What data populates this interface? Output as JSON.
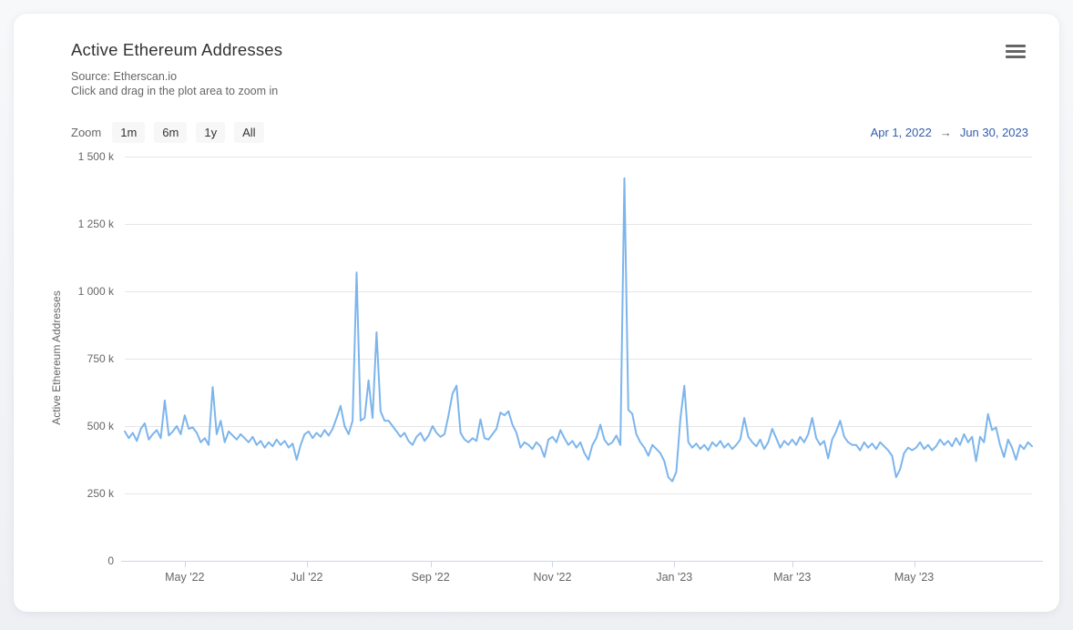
{
  "header": {
    "title": "Active Ethereum Addresses",
    "subtitle1": "Source: Etherscan.io",
    "subtitle2": "Click and drag in the plot area to zoom in"
  },
  "toolbar": {
    "zoom_label": "Zoom",
    "buttons": [
      "1m",
      "6m",
      "1y",
      "All"
    ],
    "range_from": "Apr 1, 2022",
    "range_arrow": "→",
    "range_to": "Jun 30, 2023"
  },
  "icons": {
    "menu": "hamburger-menu-icon"
  },
  "colors": {
    "line": "#7cb5ec",
    "gridline": "#e6e6e6",
    "axis_line": "#ccd6eb",
    "label_text": "#666666",
    "title_text": "#333333",
    "range_text": "#335cad",
    "card_bg": "#ffffff"
  },
  "chart_data": {
    "type": "line",
    "title": "Active Ethereum Addresses",
    "ylabel": "Active Ethereum Addresses",
    "xlabel": "",
    "legend": "none",
    "grid": "horizontal-only",
    "ylim_addresses": [
      0,
      1500000
    ],
    "x_range": {
      "start_date": "2022-04-01",
      "end_date": "2023-06-30",
      "total_days": 454
    },
    "y_axis": {
      "title": "Active Ethereum Addresses",
      "ticks": [
        {
          "value_k": 0,
          "label": "0"
        },
        {
          "value_k": 250,
          "label": "250 k"
        },
        {
          "value_k": 500,
          "label": "500 k"
        },
        {
          "value_k": 750,
          "label": "750 k"
        },
        {
          "value_k": 1000,
          "label": "1 000 k"
        },
        {
          "value_k": 1250,
          "label": "1 250 k"
        },
        {
          "value_k": 1500,
          "label": "1 500 k"
        }
      ]
    },
    "x_axis": {
      "ticks": [
        {
          "day": 30,
          "label": "May '22"
        },
        {
          "day": 91,
          "label": "Jul '22"
        },
        {
          "day": 153,
          "label": "Sep '22"
        },
        {
          "day": 214,
          "label": "Nov '22"
        },
        {
          "day": 275,
          "label": "Jan '23"
        },
        {
          "day": 334,
          "label": "Mar '23"
        },
        {
          "day": 395,
          "label": "May '23"
        }
      ]
    },
    "notable_points": [
      {
        "date": "2022-04-21",
        "value_k": 595
      },
      {
        "date": "2022-05-14",
        "value_k": 645
      },
      {
        "date": "2022-07-26",
        "value_k": 1070
      },
      {
        "date": "2022-08-04",
        "value_k": 848
      },
      {
        "date": "2022-09-14",
        "value_k": 650
      },
      {
        "date": "2022-12-07",
        "value_k": 1420
      },
      {
        "date": "2022-12-29",
        "value_k": 295
      },
      {
        "date": "2023-01-06",
        "value_k": 650
      },
      {
        "date": "2023-04-21",
        "value_k": 310
      },
      {
        "date": "2023-06-08",
        "value_k": 545
      }
    ],
    "series": [
      {
        "name": "Active Ethereum Addresses",
        "color": "#7cb5ec",
        "start_date": "2022-04-01",
        "interval_days": 2,
        "values_unit": "thousands of addresses",
        "values_k": [
          480,
          455,
          475,
          445,
          490,
          510,
          450,
          470,
          485,
          455,
          595,
          465,
          480,
          500,
          470,
          540,
          490,
          495,
          475,
          440,
          455,
          430,
          645,
          470,
          520,
          440,
          480,
          465,
          450,
          470,
          455,
          440,
          460,
          430,
          445,
          420,
          440,
          425,
          450,
          430,
          445,
          420,
          435,
          375,
          430,
          470,
          480,
          455,
          475,
          460,
          485,
          465,
          490,
          530,
          575,
          500,
          470,
          520,
          1070,
          520,
          530,
          670,
          530,
          848,
          555,
          520,
          520,
          500,
          480,
          460,
          475,
          445,
          430,
          460,
          475,
          445,
          465,
          500,
          475,
          460,
          470,
          540,
          620,
          650,
          475,
          450,
          440,
          455,
          445,
          525,
          455,
          450,
          470,
          490,
          550,
          540,
          555,
          505,
          475,
          420,
          440,
          430,
          415,
          440,
          425,
          385,
          450,
          460,
          440,
          485,
          455,
          430,
          445,
          420,
          440,
          400,
          375,
          430,
          455,
          505,
          450,
          430,
          440,
          465,
          430,
          1420,
          560,
          545,
          470,
          440,
          420,
          390,
          430,
          415,
          400,
          370,
          310,
          295,
          330,
          525,
          650,
          440,
          420,
          435,
          415,
          430,
          410,
          440,
          425,
          445,
          420,
          435,
          415,
          430,
          450,
          530,
          460,
          440,
          425,
          450,
          415,
          440,
          490,
          455,
          420,
          445,
          430,
          450,
          430,
          460,
          440,
          470,
          530,
          455,
          430,
          445,
          380,
          450,
          480,
          520,
          460,
          440,
          430,
          430,
          410,
          440,
          420,
          435,
          415,
          440,
          425,
          410,
          390,
          310,
          340,
          400,
          420,
          410,
          420,
          440,
          415,
          430,
          410,
          425,
          450,
          430,
          445,
          425,
          455,
          430,
          470,
          440,
          460,
          370,
          460,
          440,
          545,
          485,
          495,
          430,
          385,
          450,
          420,
          375,
          430,
          415,
          440,
          425
        ]
      }
    ]
  }
}
